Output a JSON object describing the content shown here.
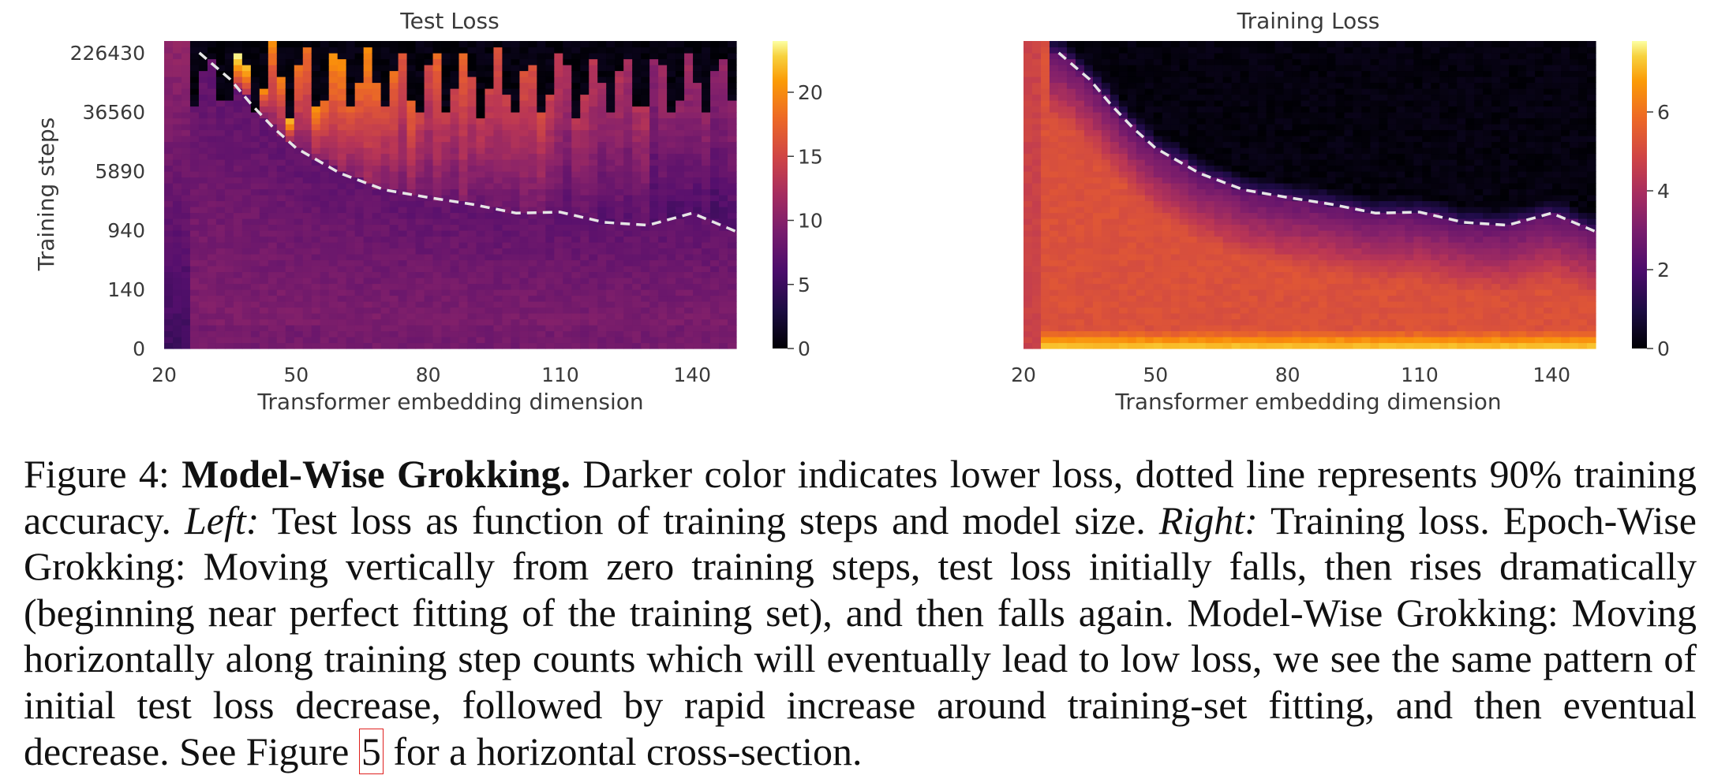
{
  "chart_data": [
    {
      "type": "heatmap",
      "title": "Test Loss",
      "xlabel": "Transformer embedding dimension",
      "ylabel": "Training steps",
      "xticks": [
        "20",
        "50",
        "80",
        "110",
        "140"
      ],
      "yticks": [
        "0",
        "140",
        "940",
        "5890",
        "36560",
        "226430"
      ],
      "colorbar_ticks": [
        "0",
        "5",
        "10",
        "15",
        "20"
      ],
      "colorbar_range": [
        0,
        24
      ],
      "colormap": "inferno",
      "x_range": [
        20,
        150
      ],
      "dashed_line": {
        "label": "90% training accuracy",
        "points": [
          [
            28,
            226430
          ],
          [
            35,
            100000
          ],
          [
            40,
            45000
          ],
          [
            45,
            22000
          ],
          [
            50,
            12000
          ],
          [
            60,
            5500
          ],
          [
            70,
            3300
          ],
          [
            80,
            2600
          ],
          [
            90,
            2100
          ],
          [
            100,
            1600
          ],
          [
            110,
            1650
          ],
          [
            120,
            1200
          ],
          [
            130,
            1100
          ],
          [
            140,
            1600
          ],
          [
            150,
            900
          ]
        ]
      }
    },
    {
      "type": "heatmap",
      "title": "Training Loss",
      "xlabel": "Transformer embedding dimension",
      "ylabel": "",
      "xticks": [
        "20",
        "50",
        "80",
        "110",
        "140"
      ],
      "yticks": [],
      "colorbar_ticks": [
        "0",
        "2",
        "4",
        "6"
      ],
      "colorbar_range": [
        0,
        7.8
      ],
      "colormap": "inferno",
      "x_range": [
        20,
        150
      ],
      "dashed_line": {
        "label": "90% training accuracy",
        "points": [
          [
            28,
            226430
          ],
          [
            35,
            100000
          ],
          [
            40,
            45000
          ],
          [
            45,
            22000
          ],
          [
            50,
            12000
          ],
          [
            60,
            5500
          ],
          [
            70,
            3300
          ],
          [
            80,
            2600
          ],
          [
            90,
            2100
          ],
          [
            100,
            1600
          ],
          [
            110,
            1650
          ],
          [
            120,
            1200
          ],
          [
            130,
            1100
          ],
          [
            140,
            1600
          ],
          [
            150,
            900
          ]
        ]
      }
    }
  ],
  "caption": {
    "figure_label": "Figure 4:",
    "bold_title": "Model-Wise Grokking.",
    "part1": " Darker color indicates lower loss, dotted line represents 90% training accuracy. ",
    "left_label": "Left:",
    "part2": " Test loss as function of training steps and model size. ",
    "right_label": "Right:",
    "part3": " Training loss. Epoch-Wise Grokking: Moving vertically from zero training steps, test loss initially falls, then rises dramatically (beginning near perfect fitting of the training set), and then falls again. Model-Wise Grokking: Moving horizontally along training step counts which will eventually lead to low loss, we see the same pattern of initial test loss decrease, followed by rapid increase around training-set fitting, and then eventual decrease. See Figure ",
    "figure_ref": "5",
    "part4": " for a horizontal cross-section."
  },
  "colors": {
    "dashed_line": "#e6e6e6",
    "figure_ref_border": "#e0211f"
  }
}
